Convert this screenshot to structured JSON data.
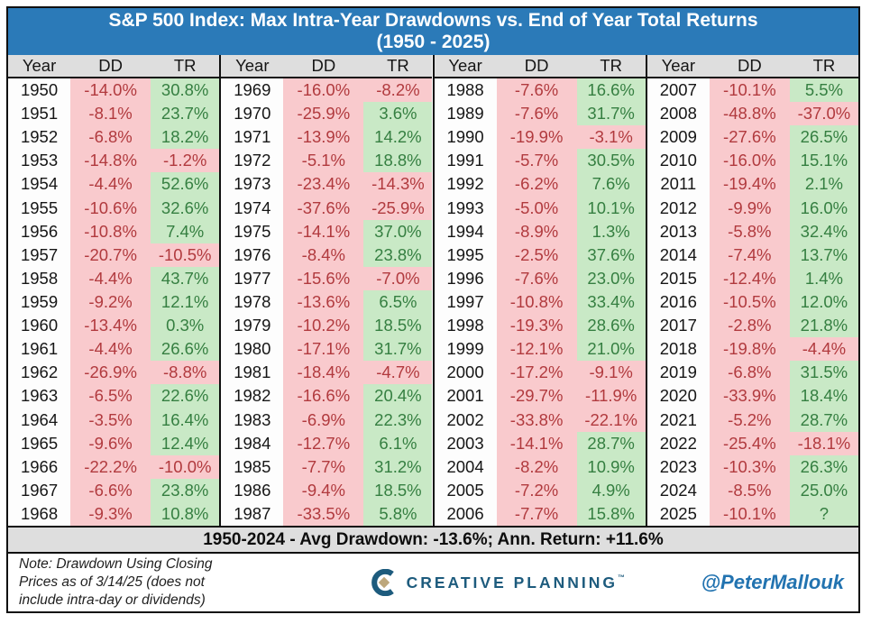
{
  "title": {
    "line1": "S&P 500 Index: Max Intra-Year Drawdowns vs. End of Year Total Returns",
    "line2": "(1950 - 2025)"
  },
  "chart_data": {
    "type": "table",
    "title": "S&P 500 Index: Max Intra-Year Drawdowns vs. End of Year Total Returns (1950 - 2025)",
    "columns": [
      "Year",
      "DD",
      "TR"
    ],
    "groups_of_rows": 19,
    "rows": [
      {
        "year": "1950",
        "dd": "-14.0%",
        "tr": "30.8%"
      },
      {
        "year": "1951",
        "dd": "-8.1%",
        "tr": "23.7%"
      },
      {
        "year": "1952",
        "dd": "-6.8%",
        "tr": "18.2%"
      },
      {
        "year": "1953",
        "dd": "-14.8%",
        "tr": "-1.2%"
      },
      {
        "year": "1954",
        "dd": "-4.4%",
        "tr": "52.6%"
      },
      {
        "year": "1955",
        "dd": "-10.6%",
        "tr": "32.6%"
      },
      {
        "year": "1956",
        "dd": "-10.8%",
        "tr": "7.4%"
      },
      {
        "year": "1957",
        "dd": "-20.7%",
        "tr": "-10.5%"
      },
      {
        "year": "1958",
        "dd": "-4.4%",
        "tr": "43.7%"
      },
      {
        "year": "1959",
        "dd": "-9.2%",
        "tr": "12.1%"
      },
      {
        "year": "1960",
        "dd": "-13.4%",
        "tr": "0.3%"
      },
      {
        "year": "1961",
        "dd": "-4.4%",
        "tr": "26.6%"
      },
      {
        "year": "1962",
        "dd": "-26.9%",
        "tr": "-8.8%"
      },
      {
        "year": "1963",
        "dd": "-6.5%",
        "tr": "22.6%"
      },
      {
        "year": "1964",
        "dd": "-3.5%",
        "tr": "16.4%"
      },
      {
        "year": "1965",
        "dd": "-9.6%",
        "tr": "12.4%"
      },
      {
        "year": "1966",
        "dd": "-22.2%",
        "tr": "-10.0%"
      },
      {
        "year": "1967",
        "dd": "-6.6%",
        "tr": "23.8%"
      },
      {
        "year": "1968",
        "dd": "-9.3%",
        "tr": "10.8%"
      },
      {
        "year": "1969",
        "dd": "-16.0%",
        "tr": "-8.2%"
      },
      {
        "year": "1970",
        "dd": "-25.9%",
        "tr": "3.6%"
      },
      {
        "year": "1971",
        "dd": "-13.9%",
        "tr": "14.2%"
      },
      {
        "year": "1972",
        "dd": "-5.1%",
        "tr": "18.8%"
      },
      {
        "year": "1973",
        "dd": "-23.4%",
        "tr": "-14.3%"
      },
      {
        "year": "1974",
        "dd": "-37.6%",
        "tr": "-25.9%"
      },
      {
        "year": "1975",
        "dd": "-14.1%",
        "tr": "37.0%"
      },
      {
        "year": "1976",
        "dd": "-8.4%",
        "tr": "23.8%"
      },
      {
        "year": "1977",
        "dd": "-15.6%",
        "tr": "-7.0%"
      },
      {
        "year": "1978",
        "dd": "-13.6%",
        "tr": "6.5%"
      },
      {
        "year": "1979",
        "dd": "-10.2%",
        "tr": "18.5%"
      },
      {
        "year": "1980",
        "dd": "-17.1%",
        "tr": "31.7%"
      },
      {
        "year": "1981",
        "dd": "-18.4%",
        "tr": "-4.7%"
      },
      {
        "year": "1982",
        "dd": "-16.6%",
        "tr": "20.4%"
      },
      {
        "year": "1983",
        "dd": "-6.9%",
        "tr": "22.3%"
      },
      {
        "year": "1984",
        "dd": "-12.7%",
        "tr": "6.1%"
      },
      {
        "year": "1985",
        "dd": "-7.7%",
        "tr": "31.2%"
      },
      {
        "year": "1986",
        "dd": "-9.4%",
        "tr": "18.5%"
      },
      {
        "year": "1987",
        "dd": "-33.5%",
        "tr": "5.8%"
      },
      {
        "year": "1988",
        "dd": "-7.6%",
        "tr": "16.6%"
      },
      {
        "year": "1989",
        "dd": "-7.6%",
        "tr": "31.7%"
      },
      {
        "year": "1990",
        "dd": "-19.9%",
        "tr": "-3.1%"
      },
      {
        "year": "1991",
        "dd": "-5.7%",
        "tr": "30.5%"
      },
      {
        "year": "1992",
        "dd": "-6.2%",
        "tr": "7.6%"
      },
      {
        "year": "1993",
        "dd": "-5.0%",
        "tr": "10.1%"
      },
      {
        "year": "1994",
        "dd": "-8.9%",
        "tr": "1.3%"
      },
      {
        "year": "1995",
        "dd": "-2.5%",
        "tr": "37.6%"
      },
      {
        "year": "1996",
        "dd": "-7.6%",
        "tr": "23.0%"
      },
      {
        "year": "1997",
        "dd": "-10.8%",
        "tr": "33.4%"
      },
      {
        "year": "1998",
        "dd": "-19.3%",
        "tr": "28.6%"
      },
      {
        "year": "1999",
        "dd": "-12.1%",
        "tr": "21.0%"
      },
      {
        "year": "2000",
        "dd": "-17.2%",
        "tr": "-9.1%"
      },
      {
        "year": "2001",
        "dd": "-29.7%",
        "tr": "-11.9%"
      },
      {
        "year": "2002",
        "dd": "-33.8%",
        "tr": "-22.1%"
      },
      {
        "year": "2003",
        "dd": "-14.1%",
        "tr": "28.7%"
      },
      {
        "year": "2004",
        "dd": "-8.2%",
        "tr": "10.9%"
      },
      {
        "year": "2005",
        "dd": "-7.2%",
        "tr": "4.9%"
      },
      {
        "year": "2006",
        "dd": "-7.7%",
        "tr": "15.8%"
      },
      {
        "year": "2007",
        "dd": "-10.1%",
        "tr": "5.5%"
      },
      {
        "year": "2008",
        "dd": "-48.8%",
        "tr": "-37.0%"
      },
      {
        "year": "2009",
        "dd": "-27.6%",
        "tr": "26.5%"
      },
      {
        "year": "2010",
        "dd": "-16.0%",
        "tr": "15.1%"
      },
      {
        "year": "2011",
        "dd": "-19.4%",
        "tr": "2.1%"
      },
      {
        "year": "2012",
        "dd": "-9.9%",
        "tr": "16.0%"
      },
      {
        "year": "2013",
        "dd": "-5.8%",
        "tr": "32.4%"
      },
      {
        "year": "2014",
        "dd": "-7.4%",
        "tr": "13.7%"
      },
      {
        "year": "2015",
        "dd": "-12.4%",
        "tr": "1.4%"
      },
      {
        "year": "2016",
        "dd": "-10.5%",
        "tr": "12.0%"
      },
      {
        "year": "2017",
        "dd": "-2.8%",
        "tr": "21.8%"
      },
      {
        "year": "2018",
        "dd": "-19.8%",
        "tr": "-4.4%"
      },
      {
        "year": "2019",
        "dd": "-6.8%",
        "tr": "31.5%"
      },
      {
        "year": "2020",
        "dd": "-33.9%",
        "tr": "18.4%"
      },
      {
        "year": "2021",
        "dd": "-5.2%",
        "tr": "28.7%"
      },
      {
        "year": "2022",
        "dd": "-25.4%",
        "tr": "-18.1%"
      },
      {
        "year": "2023",
        "dd": "-10.3%",
        "tr": "26.3%"
      },
      {
        "year": "2024",
        "dd": "-8.5%",
        "tr": "25.0%"
      },
      {
        "year": "2025",
        "dd": "-10.1%",
        "tr": "?"
      }
    ],
    "summary": "1950-2024 - Avg Drawdown: -13.6%; Ann. Return: +11.6%"
  },
  "footer": {
    "note_lines": [
      "Note: Drawdown Using Closing",
      "Prices as of 3/14/25 (does not",
      "include intra-day or dividends)"
    ],
    "brand": "CREATIVE PLANNING",
    "trademark": "™",
    "handle": "@PeterMallouk"
  },
  "colors": {
    "title_bg": "#2b7ab8",
    "header_bg": "#dedede",
    "pink": "#f9cacd",
    "green": "#c9e9c6",
    "red_text": "#b13a3e",
    "green_text": "#357f41",
    "brand_navy": "#1d5b7d",
    "brand_gold": "#bda77c",
    "handle_blue": "#2273b0"
  }
}
